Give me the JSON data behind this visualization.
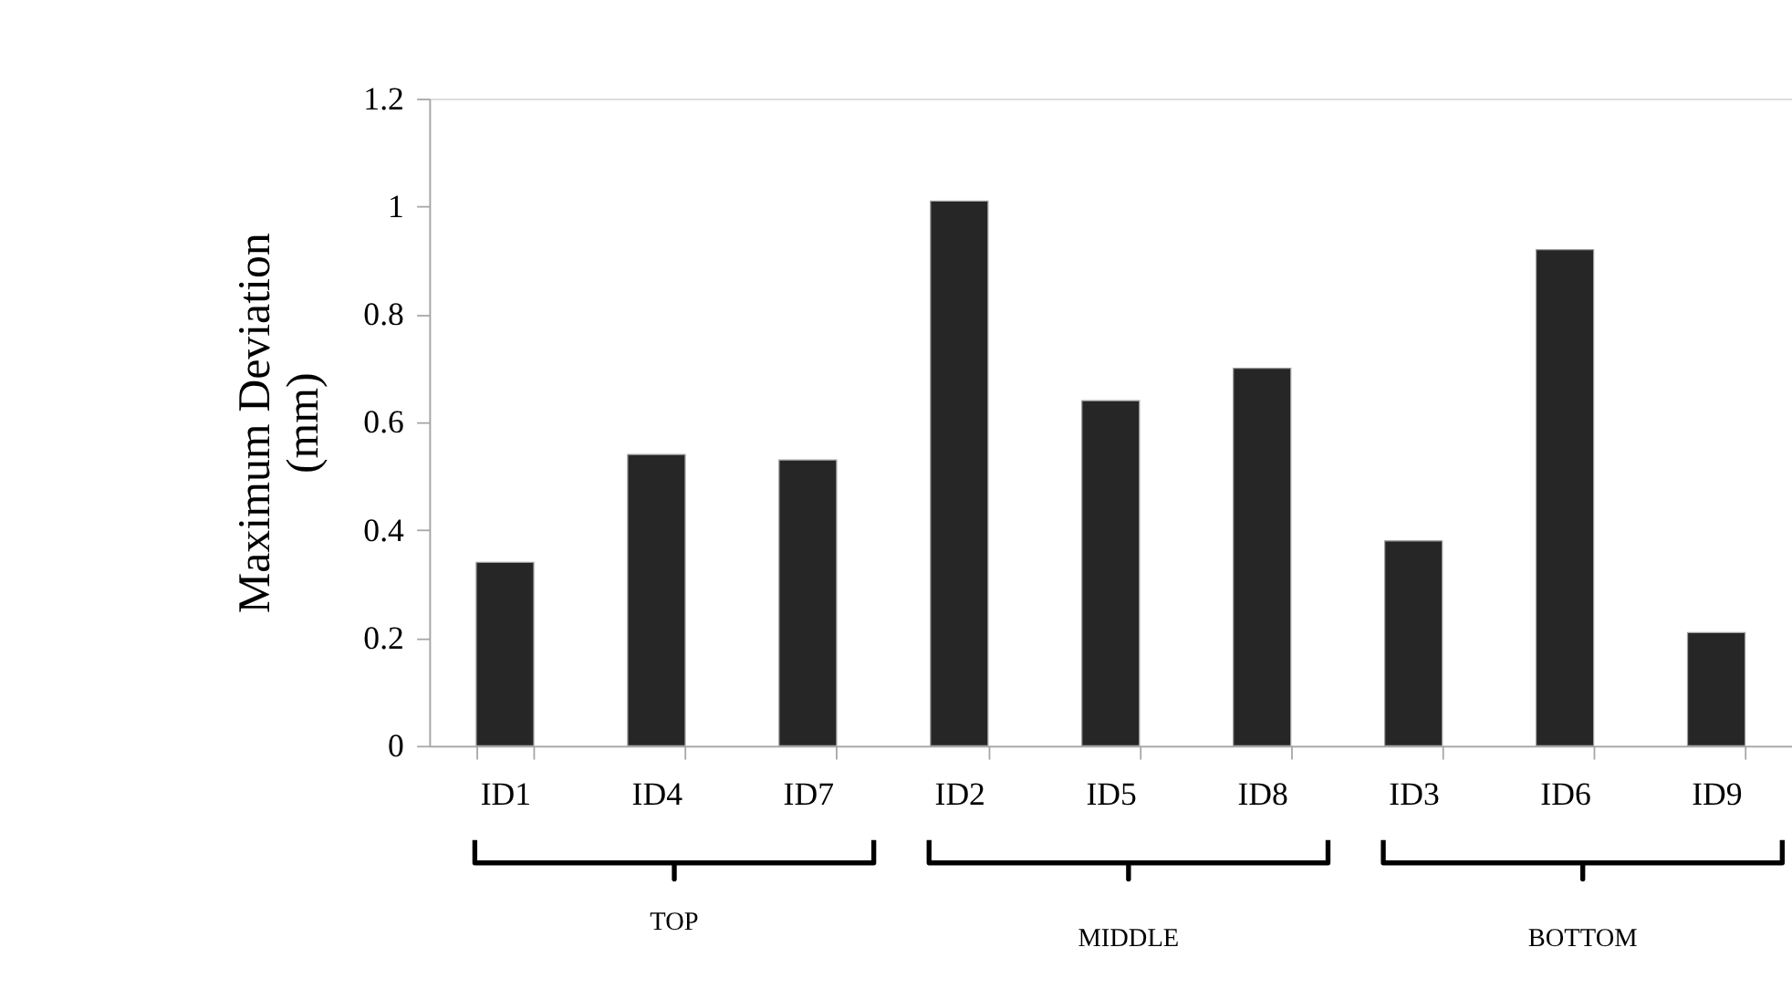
{
  "chart_data": {
    "type": "bar",
    "ylabel": "Maximum Deviation (mm)",
    "categories": [
      "ID1",
      "ID4",
      "ID7",
      "ID2",
      "ID5",
      "ID8",
      "ID3",
      "ID6",
      "ID9"
    ],
    "values": [
      0.34,
      0.54,
      0.53,
      1.01,
      0.64,
      0.7,
      0.38,
      0.92,
      0.21
    ],
    "color": "#262626",
    "ylim": [
      0,
      1.2
    ],
    "yticks": [
      0,
      0.2,
      0.4,
      0.6,
      0.8,
      1,
      1.2
    ],
    "grid": false,
    "annotations": [
      "TOP",
      "MIDDLE",
      "BOTTOM"
    ]
  }
}
